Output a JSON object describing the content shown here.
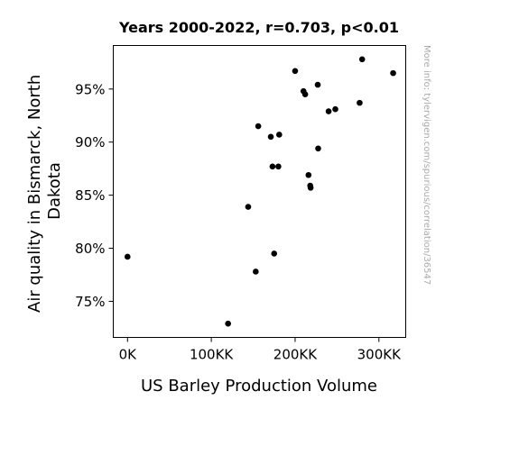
{
  "chart_data": {
    "type": "scatter",
    "title": "Years 2000-2022, r=0.703, p<0.01",
    "xlabel": "US Barley Production Volume",
    "ylabel_lines": [
      "Air quality in Bismarck, North",
      "Dakota"
    ],
    "side_note": "More info: tylervigen.com/spurious/correlation/36547",
    "xlim": [
      -17000,
      332000
    ],
    "ylim": [
      71.6,
      99.1
    ],
    "x_ticks": [
      {
        "value": 0,
        "label": "0K"
      },
      {
        "value": 100000,
        "label": "100KK"
      },
      {
        "value": 200000,
        "label": "200KK"
      },
      {
        "value": 300000,
        "label": "300KK"
      }
    ],
    "y_ticks": [
      {
        "value": 75,
        "label": "75%"
      },
      {
        "value": 80,
        "label": "80%"
      },
      {
        "value": 85,
        "label": "85%"
      },
      {
        "value": 90,
        "label": "90%"
      },
      {
        "value": 95,
        "label": "95%"
      }
    ],
    "grid": false,
    "marker_color": "#000000",
    "points": [
      {
        "x": 0,
        "y": 79.2
      },
      {
        "x": 120000,
        "y": 72.9
      },
      {
        "x": 144000,
        "y": 83.9
      },
      {
        "x": 153000,
        "y": 77.8
      },
      {
        "x": 156000,
        "y": 91.5
      },
      {
        "x": 171000,
        "y": 90.5
      },
      {
        "x": 173000,
        "y": 87.7
      },
      {
        "x": 175000,
        "y": 79.5
      },
      {
        "x": 180000,
        "y": 87.7
      },
      {
        "x": 181000,
        "y": 90.7
      },
      {
        "x": 200000,
        "y": 96.7
      },
      {
        "x": 210000,
        "y": 94.8
      },
      {
        "x": 212000,
        "y": 94.5
      },
      {
        "x": 216000,
        "y": 86.9
      },
      {
        "x": 218000,
        "y": 85.9
      },
      {
        "x": 218500,
        "y": 85.7
      },
      {
        "x": 227000,
        "y": 95.4
      },
      {
        "x": 227500,
        "y": 89.4
      },
      {
        "x": 240000,
        "y": 92.9
      },
      {
        "x": 248000,
        "y": 93.1
      },
      {
        "x": 277000,
        "y": 93.7
      },
      {
        "x": 280000,
        "y": 97.8
      },
      {
        "x": 317000,
        "y": 96.5
      }
    ]
  }
}
